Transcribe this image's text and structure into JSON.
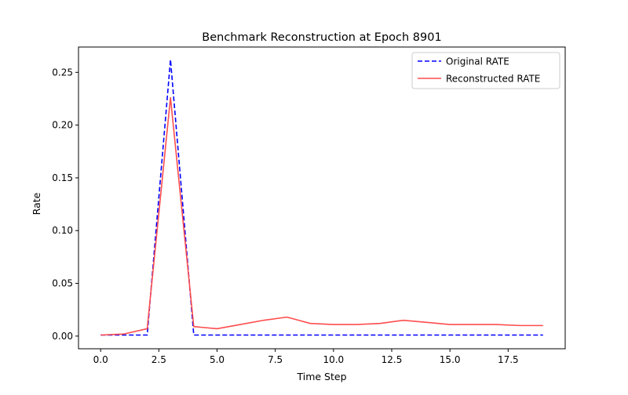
{
  "chart_data": {
    "type": "line",
    "title": "Benchmark Reconstruction at Epoch 8901",
    "xlabel": "Time Step",
    "ylabel": "Rate",
    "xlim": [
      -0.95,
      19.95
    ],
    "ylim": [
      -0.012,
      0.274
    ],
    "x_ticks": [
      0.0,
      2.5,
      5.0,
      7.5,
      10.0,
      12.5,
      15.0,
      17.5
    ],
    "x_tick_labels": [
      "0.0",
      "2.5",
      "5.0",
      "7.5",
      "10.0",
      "12.5",
      "15.0",
      "17.5"
    ],
    "y_ticks": [
      0.0,
      0.05,
      0.1,
      0.15,
      0.2,
      0.25
    ],
    "y_tick_labels": [
      "0.00",
      "0.05",
      "0.10",
      "0.15",
      "0.20",
      "0.25"
    ],
    "grid": false,
    "legend_position": "top-right",
    "x": [
      0,
      1,
      2,
      3,
      4,
      5,
      6,
      7,
      8,
      9,
      10,
      11,
      12,
      13,
      14,
      15,
      16,
      17,
      18,
      19
    ],
    "series": [
      {
        "name": "Original RATE",
        "color": "#0000ff",
        "style": "dashed",
        "values": [
          0.001,
          0.001,
          0.001,
          0.262,
          0.001,
          0.001,
          0.001,
          0.001,
          0.001,
          0.001,
          0.001,
          0.001,
          0.001,
          0.001,
          0.001,
          0.001,
          0.001,
          0.001,
          0.001,
          0.001
        ]
      },
      {
        "name": "Reconstructed RATE",
        "color": "#ff4d4d",
        "style": "solid",
        "values": [
          0.001,
          0.002,
          0.007,
          0.226,
          0.009,
          0.007,
          0.011,
          0.015,
          0.018,
          0.012,
          0.011,
          0.011,
          0.012,
          0.015,
          0.013,
          0.011,
          0.011,
          0.011,
          0.01,
          0.01
        ]
      }
    ]
  }
}
